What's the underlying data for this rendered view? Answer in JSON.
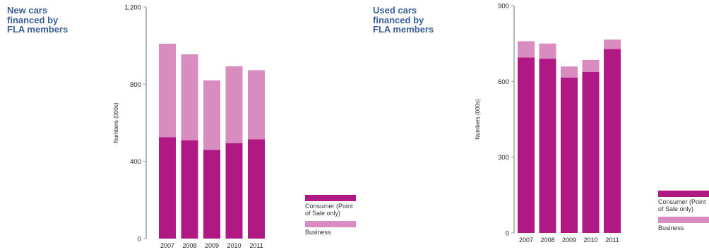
{
  "colors": {
    "consumer": "#b01884",
    "business": "#d88cc0",
    "title": "#3a5f9a",
    "axis": "#9aa0a8"
  },
  "legend": {
    "consumer": "Consumer (Point\nof Sale only)",
    "business": "Business"
  },
  "charts": [
    {
      "title": [
        "New cars",
        "financed by",
        "FLA members"
      ],
      "ylabel": "Numbers (000s)",
      "ylim": [
        0,
        1200
      ],
      "yticks": [
        0,
        400,
        800,
        1200
      ],
      "yticklabels": [
        "0",
        "400",
        "800",
        "1,200"
      ]
    },
    {
      "title": [
        "Used cars",
        "financed by",
        "FLA members"
      ],
      "ylabel": "Numbers (000s)",
      "ylim": [
        0,
        900
      ],
      "yticks": [
        0,
        300,
        600,
        900
      ],
      "yticklabels": [
        "0",
        "300",
        "600",
        "900"
      ]
    }
  ],
  "chart_data": [
    {
      "type": "bar",
      "stacked": true,
      "title": "New cars financed by FLA members",
      "ylabel": "Numbers (000s)",
      "ylim": [
        0,
        1200
      ],
      "categories": [
        "2007",
        "2008",
        "2009",
        "2010",
        "2011"
      ],
      "series": [
        {
          "name": "Consumer (Point of Sale only)",
          "values": [
            525,
            510,
            460,
            495,
            515
          ]
        },
        {
          "name": "Business",
          "values": [
            485,
            445,
            360,
            398,
            358
          ]
        }
      ]
    },
    {
      "type": "bar",
      "stacked": true,
      "title": "Used cars financed by FLA members",
      "ylabel": "Numbers (000s)",
      "ylim": [
        0,
        900
      ],
      "categories": [
        "2007",
        "2008",
        "2009",
        "2010",
        "2011"
      ],
      "series": [
        {
          "name": "Consumer (Point of Sale only)",
          "values": [
            695,
            690,
            615,
            638,
            728
          ]
        },
        {
          "name": "Business",
          "values": [
            64,
            60,
            44,
            47,
            38
          ]
        }
      ]
    }
  ]
}
